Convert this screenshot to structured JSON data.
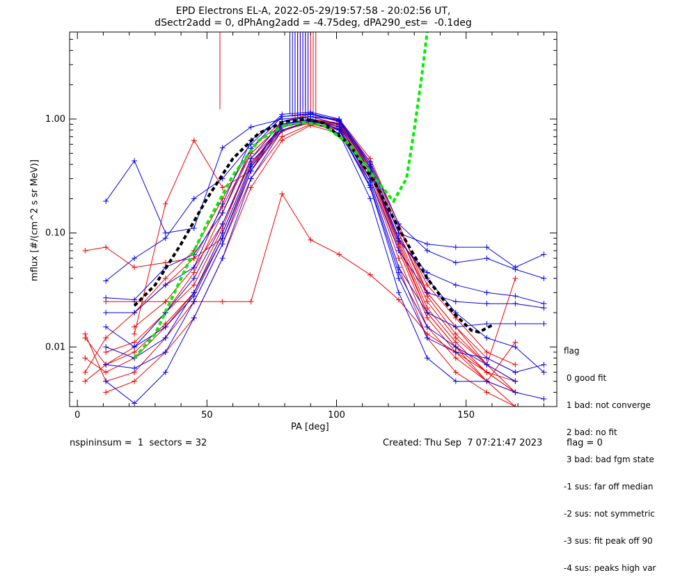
{
  "header": {
    "title_line1": "EPD Electrons EL-A, 2022-05-29/19:57:58 - 20:02:56 UT,",
    "title_line2": "dSectr2add = 0, dPhAng2add = -4.75deg, dPA290_est=  -0.1deg"
  },
  "footer": {
    "left": "nspininsum =  1  sectors = 32",
    "created": "Created: Thu Sep  7 07:21:47 2023",
    "flag": "flag = 0"
  },
  "legend": {
    "title": "flag",
    "items": [
      " 0 good fit",
      " 1 bad: not converge",
      " 2 bad: no fit",
      " 3 bad: bad fgm state",
      "-1 sus: far off median",
      "-2 sus: not symmetric",
      "-3 sus: fit peak off 90",
      "-4 sus: peaks high var"
    ]
  },
  "colors": {
    "red": "#ee0000",
    "blue": "#0000ee",
    "green": "#00ee00",
    "black": "#000000"
  },
  "chart_data": {
    "type": "line",
    "xlabel": "PA [deg]",
    "ylabel": "mflux [#/(cm^2 s sr MeV)]",
    "xlim": [
      -3,
      185
    ],
    "ylim": [
      0.003,
      5.8
    ],
    "yscale": "log",
    "xticks": [
      0,
      50,
      100,
      150
    ],
    "yticks": [
      {
        "value": 0.01,
        "label": "0.01"
      },
      {
        "value": 0.1,
        "label": "0.10"
      },
      {
        "value": 1.0,
        "label": "1.00"
      }
    ],
    "series": [
      {
        "color": "red",
        "x": [
          3,
          11,
          22,
          34,
          45,
          56,
          67,
          79,
          90,
          101,
          113,
          124,
          135,
          146,
          158,
          169
        ],
        "y": [
          0.07,
          0.075,
          0.05,
          0.055,
          0.06,
          0.09,
          0.35,
          0.8,
          0.97,
          0.9,
          0.4,
          0.1,
          0.03,
          0.015,
          0.008,
          0.006
        ]
      },
      {
        "color": "red",
        "x": [
          11,
          22,
          34,
          45,
          56,
          67,
          79,
          90,
          101,
          113,
          124,
          135,
          146,
          158,
          169
        ],
        "y": [
          0.025,
          0.025,
          0.025,
          0.025,
          0.025,
          0.025,
          0.22,
          0.087,
          0.065,
          0.043,
          0.026,
          0.013,
          0.009,
          0.006,
          0.004
        ]
      },
      {
        "color": "red",
        "x": [
          22,
          34,
          45,
          56,
          67,
          79,
          90,
          101,
          113,
          124,
          135,
          146,
          158,
          169
        ],
        "y": [
          0.013,
          0.18,
          0.65,
          0.25,
          0.35,
          0.95,
          1.05,
          1.0,
          0.45,
          0.12,
          0.03,
          0.015,
          0.007,
          0.005
        ]
      },
      {
        "color": "red",
        "x": [
          3,
          11,
          22,
          34,
          45,
          56,
          67,
          79,
          90,
          101,
          113,
          124,
          135,
          146,
          158,
          169
        ],
        "y": [
          0.008,
          0.006,
          0.008,
          0.015,
          0.03,
          0.1,
          0.4,
          0.85,
          0.98,
          0.85,
          0.35,
          0.08,
          0.02,
          0.01,
          0.006,
          0.005
        ]
      },
      {
        "color": "red",
        "x": [
          3,
          11,
          22,
          34,
          45,
          56,
          67,
          79,
          90,
          101,
          113,
          124,
          135,
          146,
          158,
          169
        ],
        "y": [
          0.005,
          0.007,
          0.01,
          0.02,
          0.045,
          0.15,
          0.5,
          0.9,
          1.0,
          0.9,
          0.38,
          0.09,
          0.025,
          0.012,
          0.007,
          0.004
        ]
      },
      {
        "color": "red",
        "x": [
          3,
          11,
          22,
          34,
          45,
          56,
          67,
          79,
          90,
          101,
          113,
          124,
          135,
          146,
          158,
          169
        ],
        "y": [
          0.013,
          0.005,
          0.006,
          0.012,
          0.025,
          0.08,
          0.3,
          0.7,
          0.9,
          0.8,
          0.3,
          0.06,
          0.015,
          0.008,
          0.005,
          0.003
        ]
      },
      {
        "color": "red",
        "x": [
          11,
          22,
          34,
          45,
          56,
          67,
          79,
          90,
          101,
          113,
          124,
          135,
          146,
          158,
          169
        ],
        "y": [
          0.004,
          0.005,
          0.009,
          0.018,
          0.06,
          0.25,
          0.65,
          0.88,
          0.75,
          0.28,
          0.05,
          0.012,
          0.006,
          0.004,
          0.003
        ]
      },
      {
        "color": "red",
        "x": [
          3,
          11,
          22,
          34,
          45,
          56,
          67,
          79,
          90,
          101,
          113,
          124,
          135,
          146,
          158,
          169
        ],
        "y": [
          0.006,
          0.012,
          0.02,
          0.04,
          0.07,
          0.2,
          0.55,
          0.95,
          1.1,
          0.95,
          0.42,
          0.11,
          0.035,
          0.018,
          0.009,
          0.007
        ]
      },
      {
        "color": "red",
        "x": [
          22,
          34,
          45,
          56,
          67,
          79,
          90,
          101,
          113,
          124,
          135,
          146,
          158,
          169
        ],
        "y": [
          0.015,
          0.025,
          0.05,
          0.12,
          0.42,
          0.8,
          0.92,
          0.82,
          0.33,
          0.07,
          0.018,
          0.009,
          0.005,
          0.004
        ]
      },
      {
        "color": "red",
        "x": [
          11,
          22,
          34,
          45,
          56,
          67,
          79,
          90,
          101,
          113,
          124,
          135,
          146,
          158,
          169
        ],
        "y": [
          0.009,
          0.011,
          0.02,
          0.035,
          0.11,
          0.45,
          0.85,
          0.97,
          0.88,
          0.37,
          0.085,
          0.022,
          0.011,
          0.006,
          0.004
        ]
      },
      {
        "color": "red",
        "x": [
          3,
          11,
          22,
          34,
          45,
          56,
          67,
          79,
          90,
          101,
          113,
          124,
          135,
          146,
          158,
          169
        ],
        "y": [
          0.012,
          0.007,
          0.009,
          0.016,
          0.03,
          0.09,
          0.38,
          0.78,
          0.95,
          0.86,
          0.35,
          0.075,
          0.02,
          0.01,
          0.005,
          0.011
        ]
      },
      {
        "color": "red",
        "x": [
          22,
          34,
          45,
          56,
          67,
          79,
          90,
          101,
          113,
          124,
          135,
          146,
          158,
          169
        ],
        "y": [
          0.02,
          0.035,
          0.06,
          0.17,
          0.5,
          0.9,
          1.0,
          0.92,
          0.4,
          0.1,
          0.028,
          0.013,
          0.007,
          0.04
        ]
      },
      {
        "color": "blue",
        "x": [
          11,
          22,
          34,
          45,
          56,
          67,
          79,
          90,
          101,
          113,
          124,
          135,
          146,
          158,
          169,
          180
        ],
        "y": [
          0.19,
          0.43,
          0.1,
          0.11,
          0.56,
          0.85,
          1.0,
          1.05,
          0.98,
          0.4,
          0.1,
          0.08,
          0.075,
          0.075,
          0.05,
          0.065
        ]
      },
      {
        "color": "blue",
        "x": [
          11,
          22,
          34,
          45,
          56,
          67,
          79,
          90,
          101,
          113,
          124,
          135,
          146,
          158,
          169,
          180
        ],
        "y": [
          0.038,
          0.06,
          0.09,
          0.2,
          0.3,
          0.6,
          1.1,
          1.15,
          1.0,
          0.42,
          0.12,
          0.07,
          0.055,
          0.06,
          0.048,
          0.04
        ]
      },
      {
        "color": "blue",
        "x": [
          11,
          22,
          34,
          45,
          56,
          67,
          79,
          90,
          101,
          113,
          124,
          135,
          146,
          158,
          169,
          180
        ],
        "y": [
          0.027,
          0.026,
          0.05,
          0.065,
          0.15,
          0.55,
          1.05,
          1.1,
          0.95,
          0.35,
          0.085,
          0.045,
          0.035,
          0.03,
          0.028,
          0.024
        ]
      },
      {
        "color": "blue",
        "x": [
          11,
          22,
          34,
          45,
          56,
          67,
          79,
          90,
          101,
          113,
          124,
          135,
          146,
          158,
          169,
          180
        ],
        "y": [
          0.015,
          0.01,
          0.02,
          0.04,
          0.12,
          0.45,
          0.95,
          1.05,
          0.9,
          0.3,
          0.07,
          0.03,
          0.025,
          0.024,
          0.024,
          0.022
        ]
      },
      {
        "color": "blue",
        "x": [
          11,
          22,
          34,
          45,
          56,
          67,
          79,
          90,
          101,
          113,
          124,
          135,
          146,
          158,
          169,
          180
        ],
        "y": [
          0.01,
          0.008,
          0.012,
          0.03,
          0.1,
          0.4,
          0.9,
          1.0,
          0.85,
          0.28,
          0.05,
          0.02,
          0.015,
          0.016,
          0.016,
          0.016
        ]
      },
      {
        "color": "blue",
        "x": [
          11,
          22,
          34,
          45,
          56,
          67,
          79,
          90,
          101,
          113,
          124,
          135,
          146,
          158,
          169,
          180
        ],
        "y": [
          0.007,
          0.0065,
          0.009,
          0.025,
          0.08,
          0.35,
          0.85,
          0.98,
          0.8,
          0.25,
          0.04,
          0.012,
          0.009,
          0.008,
          0.006,
          0.007
        ]
      },
      {
        "color": "blue",
        "x": [
          11,
          22,
          34,
          45,
          56,
          67,
          79,
          90,
          101,
          113,
          124,
          135,
          146,
          158,
          169,
          180
        ],
        "y": [
          0.005,
          0.0032,
          0.006,
          0.018,
          0.06,
          0.3,
          0.8,
          0.95,
          0.75,
          0.2,
          0.03,
          0.008,
          0.005,
          0.005,
          0.004,
          0.0035
        ]
      },
      {
        "color": "blue",
        "x": [
          11,
          22,
          34,
          45,
          56,
          67,
          79,
          90,
          101,
          113,
          124,
          135,
          146,
          158,
          169,
          180
        ],
        "y": [
          0.02,
          0.02,
          0.035,
          0.05,
          0.18,
          0.65,
          1.05,
          1.12,
          0.97,
          0.38,
          0.09,
          0.04,
          0.02,
          0.012,
          0.01,
          0.006
        ]
      },
      {
        "color": "blue",
        "x": [
          22,
          34,
          45,
          56,
          67,
          79,
          90,
          101,
          113,
          124,
          135,
          146,
          158,
          169
        ],
        "y": [
          0.01,
          0.015,
          0.028,
          0.09,
          0.38,
          0.88,
          1.0,
          0.82,
          0.26,
          0.045,
          0.015,
          0.01,
          0.007,
          0.005
        ]
      }
    ],
    "fits": [
      {
        "color": "black",
        "style": "dashed",
        "x": [
          22,
          30,
          40,
          50,
          60,
          70,
          80,
          88,
          95,
          105,
          115,
          125,
          135,
          145,
          152,
          155,
          160
        ],
        "y": [
          0.023,
          0.035,
          0.08,
          0.2,
          0.45,
          0.75,
          0.95,
          1.0,
          0.92,
          0.6,
          0.27,
          0.1,
          0.04,
          0.02,
          0.014,
          0.0135,
          0.0155
        ]
      },
      {
        "color": "green",
        "style": "dashed",
        "x": [
          22,
          30,
          40,
          50,
          60,
          70,
          80,
          88,
          95,
          105,
          115,
          122,
          127,
          130,
          133,
          135
        ],
        "y": [
          0.008,
          0.013,
          0.04,
          0.12,
          0.32,
          0.65,
          0.88,
          0.93,
          0.88,
          0.6,
          0.3,
          0.19,
          0.3,
          0.8,
          2.5,
          5.8
        ]
      }
    ],
    "spikes": {
      "red": [
        [
          55,
          1.22,
          5.8
        ],
        [
          84,
          0.95,
          5.8
        ],
        [
          85,
          0.9,
          5.8
        ],
        [
          86,
          0.95,
          5.8
        ],
        [
          87,
          1.0,
          5.8
        ],
        [
          88,
          0.98,
          5.8
        ],
        [
          89,
          1.05,
          5.8
        ],
        [
          90,
          1.0,
          5.8
        ],
        [
          91,
          1.02,
          5.8
        ],
        [
          92,
          0.98,
          5.8
        ]
      ],
      "blue": [
        [
          82,
          1.1,
          5.8
        ],
        [
          83,
          1.05,
          5.8
        ],
        [
          84,
          1.15,
          5.8
        ],
        [
          85,
          1.0,
          5.8
        ],
        [
          86,
          1.1,
          5.8
        ],
        [
          87,
          1.2,
          5.8
        ],
        [
          88,
          1.1,
          5.8
        ],
        [
          89,
          1.0,
          5.8
        ]
      ]
    }
  }
}
